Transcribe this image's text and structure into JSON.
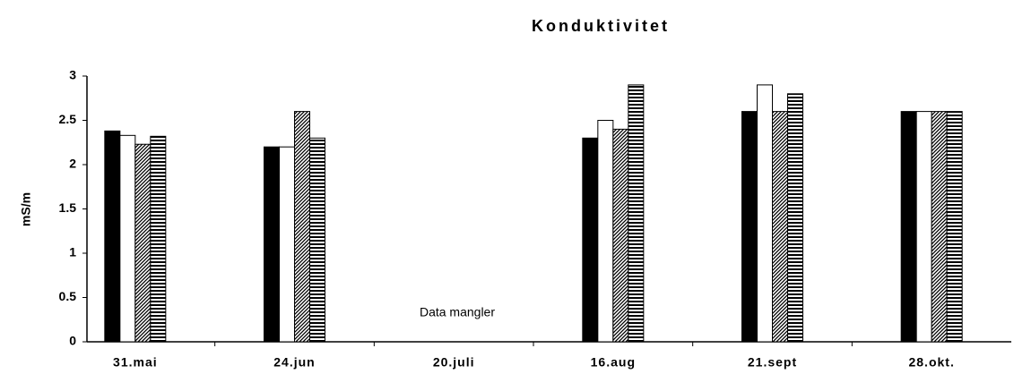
{
  "chart_data": {
    "type": "bar",
    "title": "Konduktivitet",
    "y_label": "mS/m",
    "categories": [
      "31.mai",
      "24.jun",
      "20.juli",
      "16.aug",
      "21.sept",
      "28.okt."
    ],
    "series": [
      {
        "color": "#000000",
        "pattern": "solid",
        "values": [
          2.38,
          2.2,
          null,
          2.3,
          2.6,
          2.6
        ]
      },
      {
        "color": "#ffffff",
        "pattern": "solid",
        "values": [
          2.33,
          2.2,
          null,
          2.5,
          2.9,
          2.6
        ]
      },
      {
        "color": "#000000",
        "pattern": "diagonal",
        "values": [
          2.23,
          2.6,
          null,
          2.4,
          2.6,
          2.6
        ]
      },
      {
        "color": "#000000",
        "pattern": "horizontal",
        "values": [
          2.32,
          2.3,
          null,
          2.9,
          2.8,
          2.6
        ]
      }
    ],
    "annotation": "Data mangler",
    "ylim": [
      0,
      3
    ],
    "yticks": [
      0,
      0.5,
      1,
      1.5,
      2,
      2.5,
      3
    ],
    "grid": false
  }
}
